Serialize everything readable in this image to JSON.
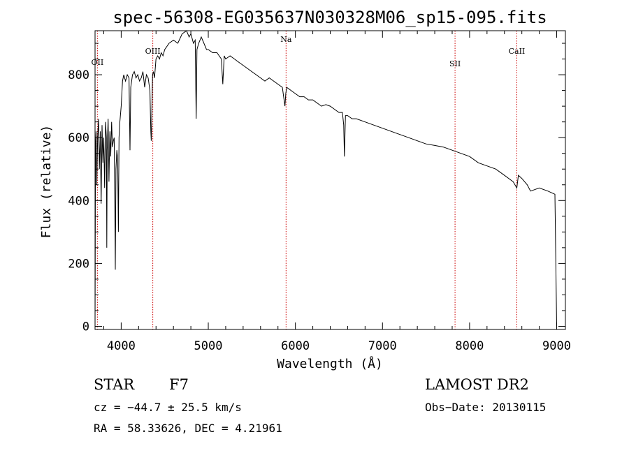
{
  "chart_data": {
    "type": "line",
    "title": "spec-56308-EG035637N030328M06_sp15-095.fits",
    "xlabel": "Wavelength (Å)",
    "ylabel": "Flux (relative)",
    "xlim": [
      3700,
      9100
    ],
    "ylim": [
      -10,
      940
    ],
    "xticks": [
      4000,
      5000,
      6000,
      7000,
      8000,
      9000
    ],
    "yticks": [
      0,
      200,
      400,
      600,
      800
    ],
    "series": [
      {
        "x": [
          3700,
          3705,
          3712,
          3720,
          3730,
          3740,
          3750,
          3760,
          3770,
          3780,
          3790,
          3800,
          3810,
          3820,
          3830,
          3835,
          3840,
          3850,
          3860,
          3870,
          3880,
          3890,
          3900,
          3910,
          3920,
          3930,
          3933,
          3940,
          3950,
          3960,
          3968,
          3975,
          3985,
          4000,
          4015,
          4030,
          4050,
          4070,
          4090,
          4101,
          4110,
          4130,
          4150,
          4170,
          4190,
          4210,
          4230,
          4250,
          4270,
          4290,
          4310,
          4330,
          4340,
          4345,
          4360,
          4370,
          4383,
          4400,
          4420,
          4440,
          4460,
          4480,
          4500,
          4550,
          4600,
          4650,
          4700,
          4750,
          4780,
          4800,
          4830,
          4850,
          4861,
          4870,
          4890,
          4920,
          4950,
          4980,
          5000,
          5050,
          5100,
          5150,
          5167,
          5183,
          5200,
          5250,
          5300,
          5350,
          5400,
          5450,
          5500,
          5550,
          5600,
          5650,
          5700,
          5750,
          5800,
          5850,
          5880,
          5890,
          5900,
          5950,
          6000,
          6050,
          6100,
          6150,
          6200,
          6250,
          6300,
          6350,
          6400,
          6450,
          6500,
          6540,
          6555,
          6563,
          6575,
          6600,
          6650,
          6700,
          6800,
          6900,
          7000,
          7100,
          7200,
          7300,
          7400,
          7500,
          7600,
          7700,
          7800,
          7900,
          8000,
          8100,
          8200,
          8300,
          8400,
          8500,
          8542,
          8560,
          8600,
          8662,
          8700,
          8800,
          8900,
          8980,
          9000
        ],
        "y": [
          0,
          560,
          620,
          450,
          600,
          660,
          500,
          620,
          390,
          640,
          520,
          600,
          440,
          650,
          600,
          250,
          560,
          660,
          460,
          620,
          540,
          650,
          570,
          590,
          600,
          280,
          180,
          500,
          560,
          530,
          300,
          600,
          650,
          700,
          780,
          800,
          780,
          800,
          790,
          560,
          760,
          800,
          810,
          790,
          800,
          780,
          790,
          810,
          760,
          800,
          790,
          750,
          620,
          590,
          800,
          810,
          790,
          850,
          860,
          850,
          870,
          860,
          880,
          900,
          910,
          900,
          930,
          940,
          920,
          930,
          900,
          910,
          660,
          880,
          900,
          920,
          900,
          880,
          880,
          870,
          870,
          850,
          770,
          860,
          850,
          860,
          850,
          840,
          830,
          820,
          810,
          800,
          790,
          780,
          790,
          780,
          770,
          760,
          700,
          740,
          760,
          750,
          740,
          730,
          730,
          720,
          720,
          710,
          700,
          705,
          700,
          690,
          680,
          680,
          640,
          540,
          670,
          670,
          660,
          660,
          650,
          640,
          630,
          620,
          610,
          600,
          590,
          580,
          575,
          570,
          560,
          550,
          540,
          520,
          510,
          500,
          480,
          460,
          440,
          480,
          470,
          450,
          430,
          440,
          430,
          420,
          0
        ]
      }
    ],
    "spectral_lines": [
      {
        "name": "OII",
        "x": 3727
      },
      {
        "name": "OIII",
        "x": 4363
      },
      {
        "name": "Na",
        "x": 5893
      },
      {
        "name": "SII",
        "x": 7833
      },
      {
        "name": "CaII",
        "x": 8542
      }
    ],
    "line_color": "#000000",
    "marker_color": "#cc0000"
  },
  "info": {
    "class": "STAR",
    "subclass": "F7",
    "survey": "LAMOST DR2",
    "cz": "cz = −44.7 ± 25.5 km/s",
    "obs_date": "Obs−Date: 20130115",
    "radec": "RA =  58.33626, DEC =   4.21961"
  }
}
